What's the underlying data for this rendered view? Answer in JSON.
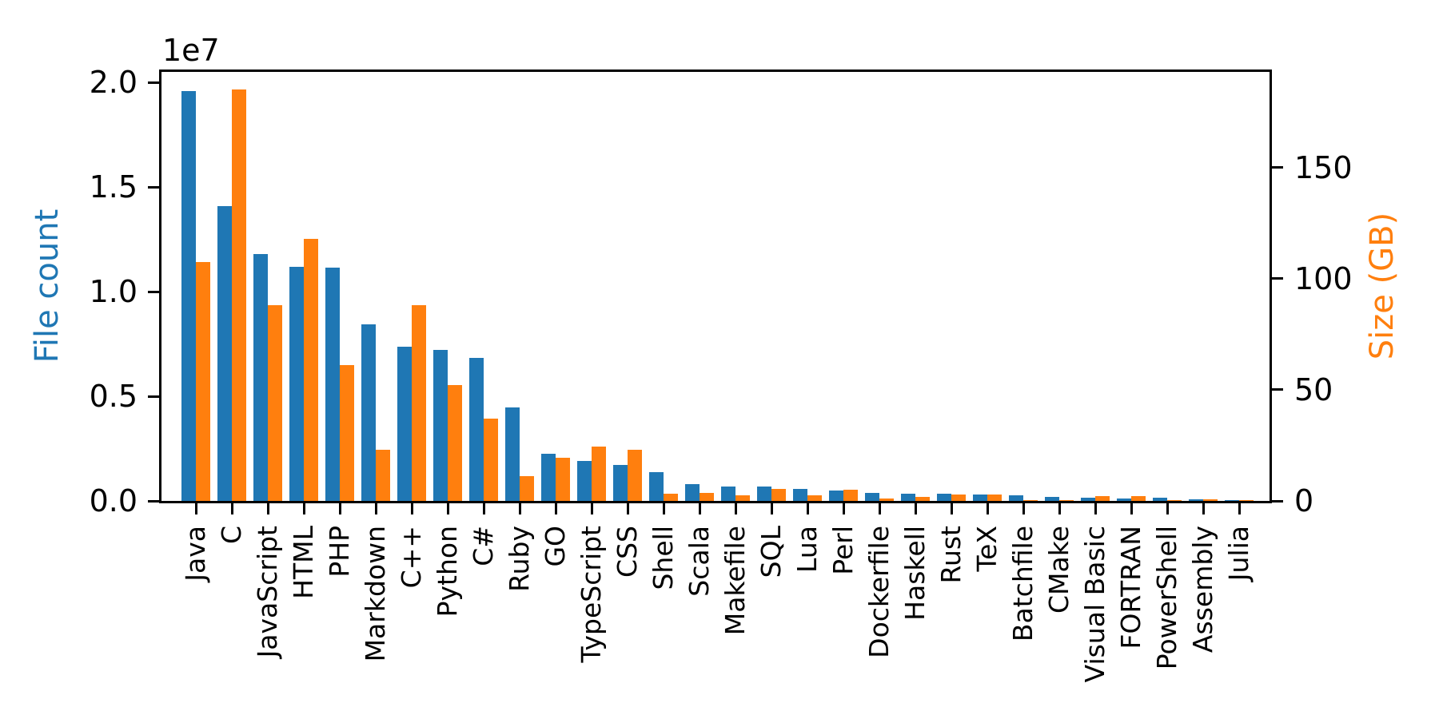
{
  "figure": {
    "offset_label": "1e7",
    "left_axis": {
      "label": "File count",
      "color": "#1f77b4",
      "tick_labels": [
        "0.0",
        "0.5",
        "1.0",
        "1.5",
        "2.0"
      ]
    },
    "right_axis": {
      "label": "Size (GB)",
      "color": "#ff7f0e",
      "tick_labels": [
        "0",
        "50",
        "100",
        "150"
      ]
    }
  },
  "chart_data": {
    "type": "bar",
    "title": "",
    "xlabel": "",
    "categories": [
      "Java",
      "C",
      "JavaScript",
      "HTML",
      "PHP",
      "Markdown",
      "C++",
      "Python",
      "C#",
      "Ruby",
      "GO",
      "TypeScript",
      "CSS",
      "Shell",
      "Scala",
      "Makefile",
      "SQL",
      "Lua",
      "Perl",
      "Dockerfile",
      "Haskell",
      "Rust",
      "TeX",
      "Batchfile",
      "CMake",
      "Visual Basic",
      "FORTRAN",
      "PowerShell",
      "Assembly",
      "Julia"
    ],
    "series": [
      {
        "name": "File count",
        "axis": "left",
        "color": "#1f77b4",
        "values": [
          19600000,
          14100000,
          11800000,
          11200000,
          11150000,
          8450000,
          7350000,
          7220000,
          6820000,
          4470000,
          2250000,
          1910000,
          1720000,
          1370000,
          800000,
          690000,
          670000,
          570000,
          500000,
          370000,
          330000,
          330000,
          290000,
          270000,
          180000,
          170000,
          130000,
          150000,
          65000,
          40000
        ]
      },
      {
        "name": "Size (GB)",
        "axis": "right",
        "color": "#ff7f0e",
        "values": [
          107.5,
          185,
          88,
          118,
          61,
          23,
          88,
          52,
          37,
          11,
          19.5,
          24.5,
          23,
          3.2,
          3.6,
          2.5,
          5.4,
          2.5,
          4.9,
          1.0,
          1.9,
          2.9,
          2.8,
          0.3,
          0.4,
          2.3,
          2.0,
          0.3,
          0.8,
          0.2
        ]
      }
    ],
    "left_ylabel": "File count",
    "right_ylabel": "Size (GB)",
    "left_ylim": [
      0,
      20500000
    ],
    "right_ylim": [
      0,
      193
    ],
    "left_yticks": [
      0,
      5000000,
      10000000,
      15000000,
      20000000
    ],
    "left_ytick_labels": [
      "0.0",
      "0.5",
      "1.0",
      "1.5",
      "2.0"
    ],
    "left_offset_text": "1e7",
    "right_yticks": [
      0,
      50,
      100,
      150
    ],
    "right_ytick_labels": [
      "0",
      "50",
      "100",
      "150"
    ],
    "grid": false,
    "legend_position": "none"
  }
}
